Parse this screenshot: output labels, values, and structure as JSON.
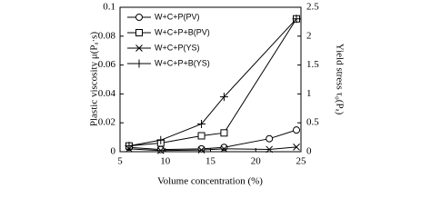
{
  "chart_data": {
    "type": "line",
    "xlabel": "Volume concentration (%)",
    "ylabel": "Plastic viscosity μ(Pₐ·s)",
    "y2label": "Yield stress τ₀(Pₐ)",
    "xlim": [
      5,
      25
    ],
    "xticks": [
      5,
      10,
      15,
      20,
      25
    ],
    "ylim": [
      0,
      0.1
    ],
    "yticks": [
      0,
      0.02,
      0.04,
      0.06,
      0.08,
      0.1
    ],
    "y2lim": [
      0,
      2.5
    ],
    "y2ticks": [
      0,
      0.5,
      1,
      1.5,
      2,
      2.5
    ],
    "legend": "upper left",
    "series": [
      {
        "name": "W+C+P(PV)",
        "color": "#000000",
        "marker": "circle",
        "x": [
          6,
          9.5,
          14,
          16.5,
          21.5,
          24.5
        ],
        "values": [
          0.003,
          0.0015,
          0.002,
          0.003,
          0.009,
          0.015
        ]
      },
      {
        "name": "W+C+P+B(PV)",
        "color": "#000000",
        "marker": "square",
        "x": [
          6,
          9.5,
          14,
          16.5,
          24.5
        ],
        "values": [
          0.004,
          0.006,
          0.011,
          0.013,
          0.092
        ]
      },
      {
        "name": "W+C+P(YS)",
        "color": "#000000",
        "marker": "x",
        "axis": "y2",
        "x": [
          6,
          9.5,
          14,
          16.5,
          21.5,
          24.5
        ],
        "values": [
          0.05,
          0.02,
          0.03,
          0.05,
          0.04,
          0.08
        ]
      },
      {
        "name": "W+C+P+B(YS)",
        "color": "#000000",
        "marker": "plus",
        "axis": "y2",
        "x": [
          6,
          9.5,
          14,
          16.5,
          24.5
        ],
        "values": [
          0.1,
          0.2,
          0.48,
          0.95,
          2.3
        ]
      }
    ]
  }
}
